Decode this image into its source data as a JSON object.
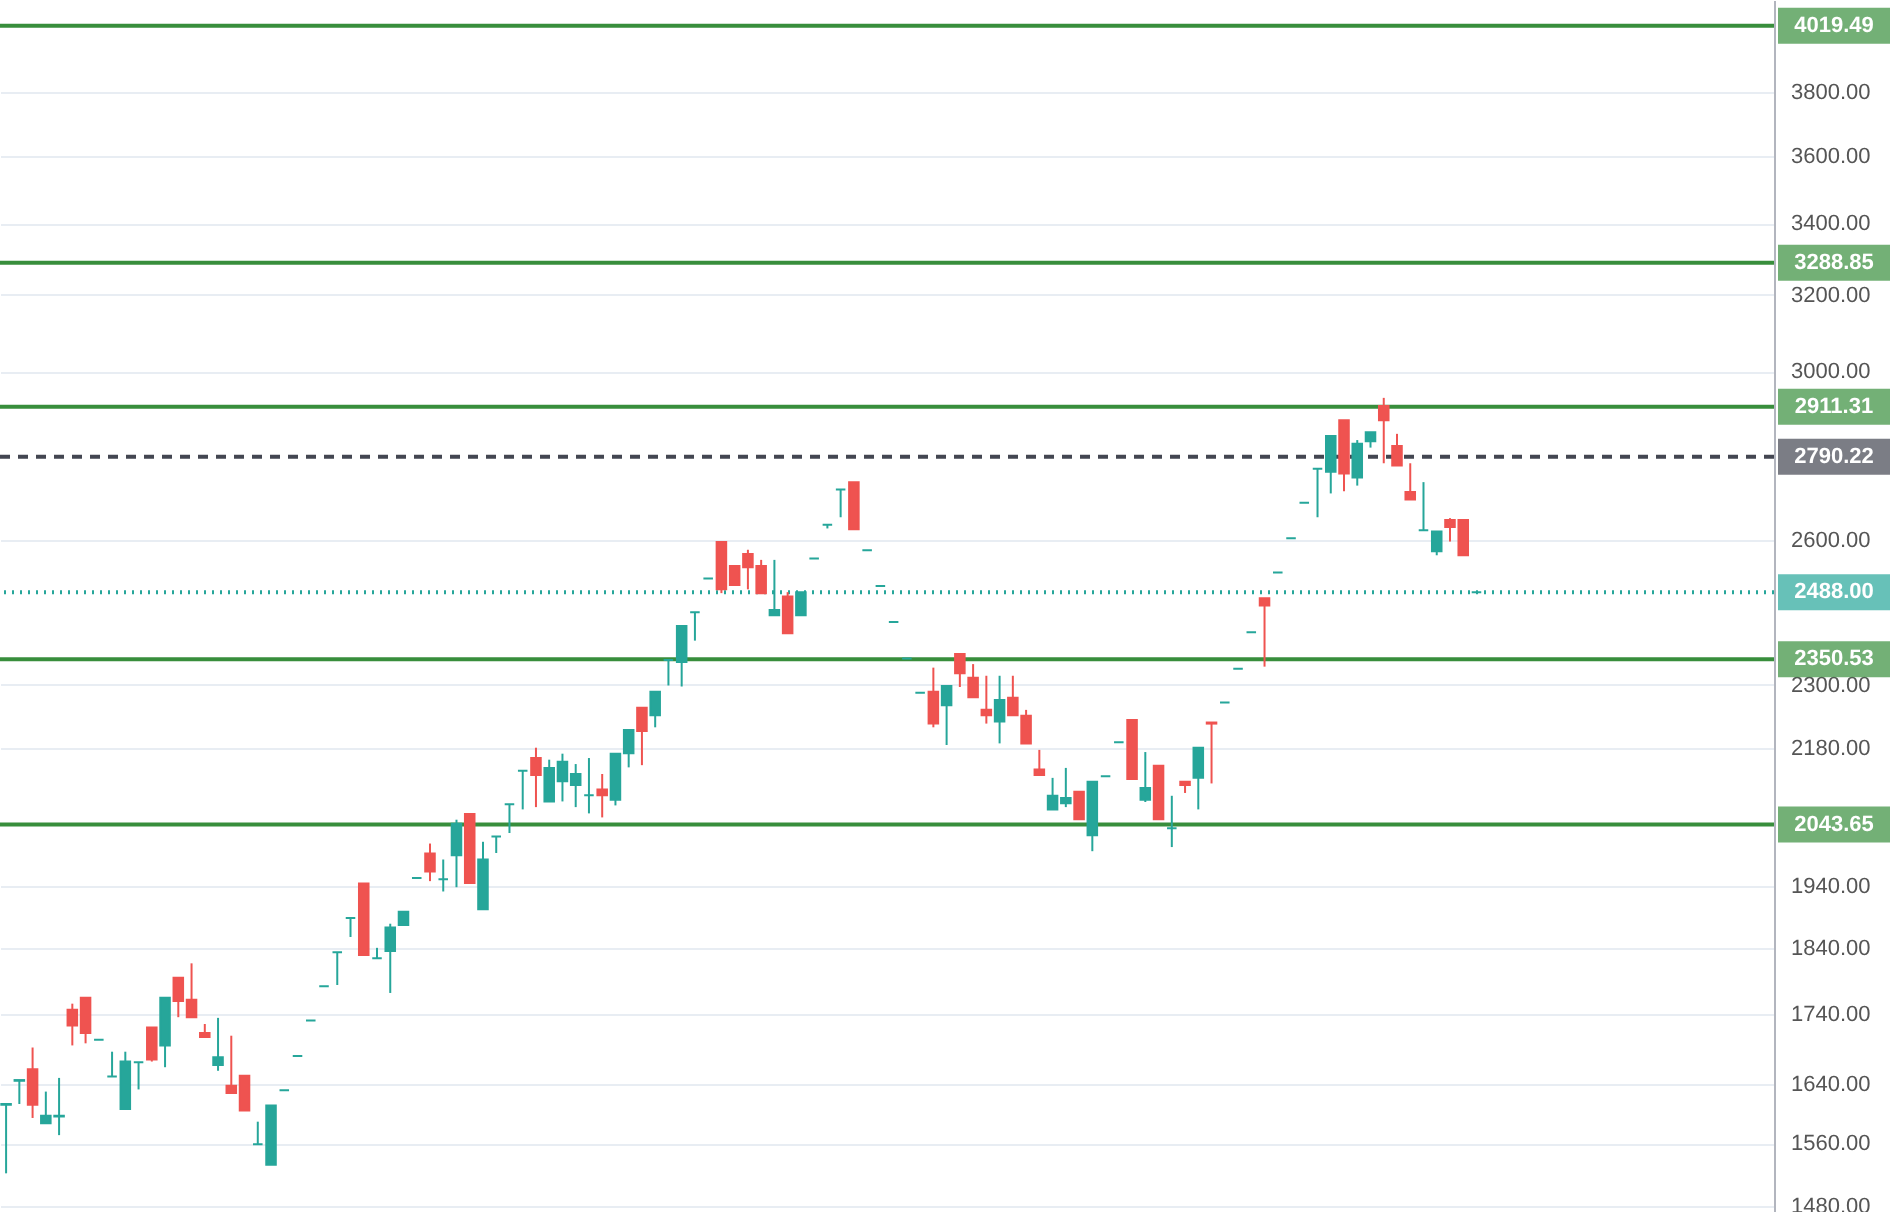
{
  "chart_data": {
    "type": "candlestick",
    "log": true,
    "grid": "y",
    "tick_labels": "y",
    "categories": [
      null,
      null,
      null,
      null,
      null,
      null,
      null,
      null,
      null,
      null,
      null,
      null,
      null,
      null,
      null,
      null,
      null,
      null,
      null,
      null,
      null,
      null,
      null,
      null,
      null,
      null,
      null,
      null,
      null,
      null,
      null,
      null,
      null,
      null,
      null,
      null,
      null,
      null,
      null,
      null,
      null,
      null,
      null,
      null,
      null,
      null,
      null,
      null,
      null,
      null,
      null,
      null,
      null,
      null,
      null,
      null,
      null,
      null,
      null,
      null,
      null,
      null,
      null,
      null,
      null,
      null,
      null,
      null,
      null,
      null,
      null,
      null,
      null,
      null,
      null,
      null,
      null,
      null,
      null,
      null,
      null,
      null,
      null,
      null,
      null,
      null,
      null,
      null,
      null,
      null,
      null,
      null,
      null,
      null,
      null,
      null,
      null,
      null,
      null,
      null,
      null,
      null,
      null,
      null,
      null,
      null,
      null,
      null,
      null,
      null,
      null,
      null,
      null,
      null,
      null,
      null,
      null,
      null,
      null,
      null,
      null,
      null,
      null,
      null,
      null,
      null,
      null,
      null,
      null,
      null,
      null,
      null,
      null,
      null
    ],
    "ohlc": [
      [
        1612,
        1613,
        1521,
        1613
      ],
      [
        1645,
        1646,
        1613,
        1646
      ],
      [
        1661,
        1692,
        1594,
        1612
      ],
      [
        1587,
        1630,
        1587,
        1597
      ],
      [
        1596,
        1649,
        1571,
        1597
      ],
      [
        1747,
        1756,
        1695,
        1724
      ],
      [
        1765,
        1765,
        1698,
        1713
      ],
      [
        1703,
        1703,
        1703,
        1703
      ],
      [
        1651,
        1686,
        1651,
        1651
      ],
      [
        1606,
        1686,
        1606,
        1672
      ],
      [
        1671,
        1671,
        1633,
        1671
      ],
      [
        1721,
        1721,
        1672,
        1675
      ],
      [
        1695,
        1765,
        1664,
        1765
      ],
      [
        1795,
        1795,
        1736,
        1760
      ],
      [
        1762,
        1817,
        1736,
        1736
      ],
      [
        1713,
        1726,
        1707,
        1707
      ],
      [
        1667,
        1735,
        1659,
        1678
      ],
      [
        1638,
        1709,
        1628,
        1628
      ],
      [
        1652,
        1652,
        1604,
        1604
      ],
      [
        1559,
        1589,
        1559,
        1559
      ],
      [
        1532,
        1611,
        1532,
        1611
      ],
      [
        1632,
        1632,
        1632,
        1632
      ],
      [
        1680,
        1680,
        1680,
        1680
      ],
      [
        1731,
        1731,
        1731,
        1731
      ],
      [
        1782,
        1782,
        1782,
        1782
      ],
      [
        1834,
        1834,
        1784,
        1834
      ],
      [
        1888,
        1888,
        1858,
        1888
      ],
      [
        1944,
        1944,
        1830,
        1830
      ],
      [
        1825,
        1841,
        1825,
        1825
      ],
      [
        1836,
        1879,
        1772,
        1873
      ],
      [
        1877,
        1898,
        1877,
        1898
      ],
      [
        1953,
        1953,
        1953,
        1953
      ],
      [
        1994,
        2011,
        1948,
        1964
      ],
      [
        1951,
        1984,
        1931,
        1951
      ],
      [
        1991,
        2052,
        1938,
        2045
      ],
      [
        2062,
        2062,
        1945,
        1945
      ],
      [
        1902,
        2014,
        1902,
        1984
      ],
      [
        2023,
        2023,
        1995,
        2023
      ],
      [
        2079,
        2079,
        2029,
        2079
      ],
      [
        2139,
        2139,
        2070,
        2139
      ],
      [
        2162,
        2181,
        2074,
        2131
      ],
      [
        2084,
        2159,
        2084,
        2144
      ],
      [
        2120,
        2170,
        2084,
        2155
      ],
      [
        2113,
        2151,
        2074,
        2133
      ],
      [
        2095,
        2162,
        2063,
        2095
      ],
      [
        2105,
        2133,
        2056,
        2095
      ],
      [
        2087,
        2170,
        2077,
        2170
      ],
      [
        2171,
        2214,
        2145,
        2214
      ],
      [
        2256,
        2256,
        2149,
        2212
      ],
      [
        2242,
        2287,
        2219,
        2287
      ],
      [
        2349,
        2349,
        2299,
        2349
      ],
      [
        2345,
        2418,
        2297,
        2418
      ],
      [
        2446,
        2446,
        2388,
        2446
      ],
      [
        2517,
        2517,
        2517,
        2517
      ],
      [
        2596,
        2596,
        2486,
        2494
      ],
      [
        2544,
        2544,
        2503,
        2503
      ],
      [
        2570,
        2579,
        2494,
        2541
      ],
      [
        2544,
        2557,
        2486,
        2486
      ],
      [
        2440,
        2557,
        2440,
        2451
      ],
      [
        2479,
        2488,
        2403,
        2403
      ],
      [
        2440,
        2488,
        2440,
        2488
      ],
      [
        2560,
        2560,
        2560,
        2560
      ],
      [
        2634,
        2634,
        2626,
        2634
      ],
      [
        2714,
        2714,
        2651,
        2714
      ],
      [
        2731,
        2731,
        2624,
        2624
      ],
      [
        2578,
        2578,
        2578,
        2578
      ],
      [
        2501,
        2501,
        2501,
        2501
      ],
      [
        2426,
        2426,
        2426,
        2426
      ],
      [
        2352,
        2352,
        2352,
        2352
      ],
      [
        2285,
        2285,
        2285,
        2285
      ],
      [
        2287,
        2334,
        2219,
        2226
      ],
      [
        2261,
        2298,
        2186,
        2298
      ],
      [
        2361,
        2361,
        2296,
        2323
      ],
      [
        2314,
        2341,
        2276,
        2276
      ],
      [
        2252,
        2318,
        2226,
        2242
      ],
      [
        2230,
        2318,
        2189,
        2271
      ],
      [
        2275,
        2318,
        2242,
        2242
      ],
      [
        2241,
        2252,
        2189,
        2189
      ],
      [
        2141,
        2177,
        2131,
        2131
      ],
      [
        2070,
        2126,
        2070,
        2094
      ],
      [
        2081,
        2144,
        2074,
        2090
      ],
      [
        2101,
        2101,
        2053,
        2053
      ],
      [
        2025,
        2119,
        1998,
        2119
      ],
      [
        2129,
        2129,
        2129,
        2129
      ],
      [
        2191,
        2191,
        2191,
        2191
      ],
      [
        2233,
        2233,
        2124,
        2124
      ],
      [
        2087,
        2173,
        2083,
        2108
      ],
      [
        2148,
        2148,
        2053,
        2053
      ],
      [
        2037,
        2094,
        2005,
        2037
      ],
      [
        2119,
        2119,
        2099,
        2113
      ],
      [
        2126,
        2181,
        2070,
        2181
      ],
      [
        2228,
        2228,
        2116,
        2226
      ],
      [
        2266,
        2266,
        2266,
        2266
      ],
      [
        2332,
        2332,
        2332,
        2332
      ],
      [
        2405,
        2405,
        2405,
        2405
      ],
      [
        2475,
        2475,
        2336,
        2460
      ],
      [
        2530,
        2530,
        2530,
        2530
      ],
      [
        2604,
        2604,
        2604,
        2604
      ],
      [
        2684,
        2684,
        2684,
        2684
      ],
      [
        2762,
        2762,
        2651,
        2762
      ],
      [
        2755,
        2840,
        2705,
        2840
      ],
      [
        2878,
        2878,
        2710,
        2751
      ],
      [
        2742,
        2830,
        2723,
        2821
      ],
      [
        2827,
        2849,
        2812,
        2849
      ],
      [
        2913,
        2933,
        2775,
        2878
      ],
      [
        2816,
        2845,
        2770,
        2770
      ],
      [
        2708,
        2775,
        2691,
        2691
      ],
      [
        2622,
        2731,
        2622,
        2622
      ],
      [
        2576,
        2619,
        2567,
        2619
      ],
      [
        2645,
        2649,
        2597,
        2629
      ],
      [
        2645,
        2645,
        2567,
        2567
      ],
      [
        2488,
        2488,
        2488,
        2488
      ],
      null,
      null,
      null,
      null,
      null,
      null,
      null,
      null,
      null,
      null,
      null,
      null,
      null,
      null,
      null,
      null,
      null,
      null,
      null,
      null,
      null,
      null
    ],
    "ylim": [
      1472,
      4108
    ],
    "yticks": [
      {
        "value": 3800,
        "label": "3800.00"
      },
      {
        "value": 3600,
        "label": "3600.00"
      },
      {
        "value": 3400,
        "label": "3400.00"
      },
      {
        "value": 3200,
        "label": "3200.00"
      },
      {
        "value": 3000,
        "label": "3000.00"
      },
      {
        "value": 2600,
        "label": "2600.00"
      },
      {
        "value": 2300,
        "label": "2300.00"
      },
      {
        "value": 2180,
        "label": "2180.00"
      },
      {
        "value": 1940,
        "label": "1940.00"
      },
      {
        "value": 1840,
        "label": "1840.00"
      },
      {
        "value": 1740,
        "label": "1740.00"
      },
      {
        "value": 1640,
        "label": "1640.00"
      },
      {
        "value": 1560,
        "label": "1560.00"
      },
      {
        "value": 1480,
        "label": "1480.00"
      }
    ],
    "ref_lines": [
      {
        "axis": "y",
        "value": 4019.49,
        "label": "4019.49",
        "color": "#388e3c",
        "line_style": "solid"
      },
      {
        "axis": "y",
        "value": 3288.85,
        "label": "3288.85",
        "color": "#388e3c",
        "line_style": "solid"
      },
      {
        "axis": "y",
        "value": 2911.31,
        "label": "2911.31",
        "color": "#388e3c",
        "line_style": "solid"
      },
      {
        "axis": "y",
        "value": 2790.22,
        "label": "2790.22",
        "color": "#434651",
        "line_style": "dashed"
      },
      {
        "axis": "y",
        "value": 2488,
        "label": "2488.00",
        "color": "#26a69a",
        "line_style": "dotted"
      },
      {
        "axis": "y",
        "value": 2350.53,
        "label": "2350.53",
        "color": "#388e3c",
        "line_style": "solid"
      },
      {
        "axis": "y",
        "value": 2043.65,
        "label": "2043.65",
        "color": "#388e3c",
        "line_style": "solid"
      }
    ]
  }
}
